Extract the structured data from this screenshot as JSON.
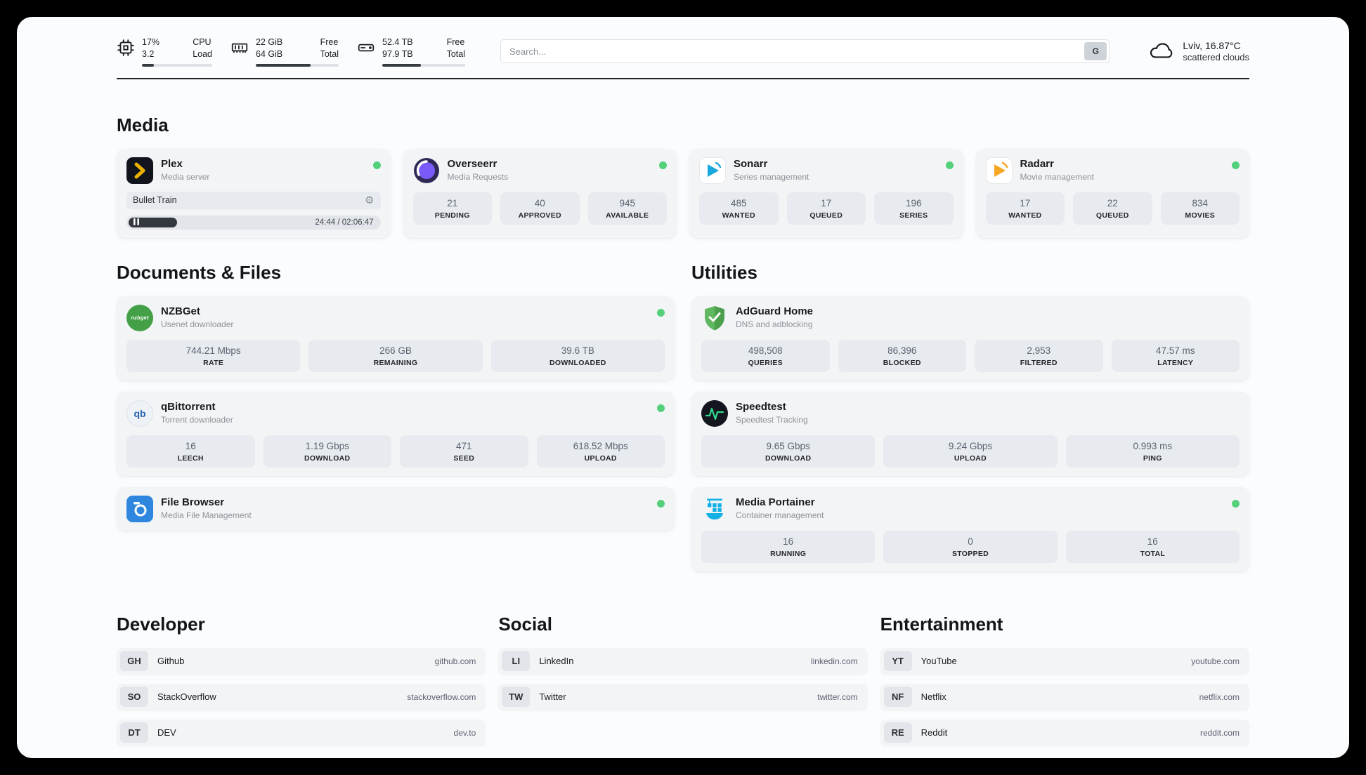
{
  "topbar": {
    "cpu": {
      "value": "17%",
      "subvalue": "3.2",
      "label_top": "CPU",
      "label_bottom": "Load",
      "progress": 17
    },
    "ram": {
      "value": "22 GiB",
      "subvalue": "64 GiB",
      "label_top": "Free",
      "label_bottom": "Total",
      "progress": 66
    },
    "disk": {
      "value": "52.4 TB",
      "subvalue": "97.9 TB",
      "label_top": "Free",
      "label_bottom": "Total",
      "progress": 47
    },
    "search": {
      "placeholder": "Search...",
      "button_label": "G"
    },
    "weather": {
      "location": "Lviv, 16.87°C",
      "condition": "scattered clouds"
    }
  },
  "media": {
    "title": "Media",
    "plex": {
      "name": "Plex",
      "subtitle": "Media server",
      "now_playing": "Bullet Train",
      "time": "24:44 / 02:06:47",
      "progress": 19
    },
    "overseerr": {
      "name": "Overseerr",
      "subtitle": "Media Requests",
      "stats": [
        {
          "value": "21",
          "label": "PENDING"
        },
        {
          "value": "40",
          "label": "APPROVED"
        },
        {
          "value": "945",
          "label": "AVAILABLE"
        }
      ]
    },
    "sonarr": {
      "name": "Sonarr",
      "subtitle": "Series management",
      "stats": [
        {
          "value": "485",
          "label": "WANTED"
        },
        {
          "value": "17",
          "label": "QUEUED"
        },
        {
          "value": "196",
          "label": "SERIES"
        }
      ]
    },
    "radarr": {
      "name": "Radarr",
      "subtitle": "Movie management",
      "stats": [
        {
          "value": "17",
          "label": "WANTED"
        },
        {
          "value": "22",
          "label": "QUEUED"
        },
        {
          "value": "834",
          "label": "MOVIES"
        }
      ]
    }
  },
  "documents": {
    "title": "Documents & Files",
    "nzbget": {
      "name": "NZBGet",
      "subtitle": "Usenet downloader",
      "stats": [
        {
          "value": "744.21 Mbps",
          "label": "RATE"
        },
        {
          "value": "266 GB",
          "label": "REMAINING"
        },
        {
          "value": "39.6 TB",
          "label": "DOWNLOADED"
        }
      ]
    },
    "qbittorrent": {
      "name": "qBittorrent",
      "subtitle": "Torrent downloader",
      "stats": [
        {
          "value": "16",
          "label": "LEECH"
        },
        {
          "value": "1.19 Gbps",
          "label": "DOWNLOAD"
        },
        {
          "value": "471",
          "label": "SEED"
        },
        {
          "value": "618.52 Mbps",
          "label": "UPLOAD"
        }
      ]
    },
    "filebrowser": {
      "name": "File Browser",
      "subtitle": "Media File Management"
    }
  },
  "utilities": {
    "title": "Utilities",
    "adguard": {
      "name": "AdGuard Home",
      "subtitle": "DNS and adblocking",
      "stats": [
        {
          "value": "498,508",
          "label": "QUERIES"
        },
        {
          "value": "86,396",
          "label": "BLOCKED"
        },
        {
          "value": "2,953",
          "label": "FILTERED"
        },
        {
          "value": "47.57 ms",
          "label": "LATENCY"
        }
      ]
    },
    "speedtest": {
      "name": "Speedtest",
      "subtitle": "Speedtest Tracking",
      "stats": [
        {
          "value": "9.65 Gbps",
          "label": "DOWNLOAD"
        },
        {
          "value": "9.24 Gbps",
          "label": "UPLOAD"
        },
        {
          "value": "0.993 ms",
          "label": "PING"
        }
      ]
    },
    "portainer": {
      "name": "Media Portainer",
      "subtitle": "Container management",
      "stats": [
        {
          "value": "16",
          "label": "RUNNING"
        },
        {
          "value": "0",
          "label": "STOPPED"
        },
        {
          "value": "16",
          "label": "TOTAL"
        }
      ]
    }
  },
  "bookmarks": {
    "developer": {
      "title": "Developer",
      "items": [
        {
          "abbr": "GH",
          "name": "Github",
          "url": "github.com"
        },
        {
          "abbr": "SO",
          "name": "StackOverflow",
          "url": "stackoverflow.com"
        },
        {
          "abbr": "DT",
          "name": "DEV",
          "url": "dev.to"
        }
      ]
    },
    "social": {
      "title": "Social",
      "items": [
        {
          "abbr": "LI",
          "name": "LinkedIn",
          "url": "linkedin.com"
        },
        {
          "abbr": "TW",
          "name": "Twitter",
          "url": "twitter.com"
        }
      ]
    },
    "entertainment": {
      "title": "Entertainment",
      "items": [
        {
          "abbr": "YT",
          "name": "YouTube",
          "url": "youtube.com"
        },
        {
          "abbr": "NF",
          "name": "Netflix",
          "url": "netflix.com"
        },
        {
          "abbr": "RE",
          "name": "Reddit",
          "url": "reddit.com"
        }
      ]
    }
  },
  "colors": {
    "status_online": "#54d07b",
    "accent_plex": "#ebaf00"
  }
}
